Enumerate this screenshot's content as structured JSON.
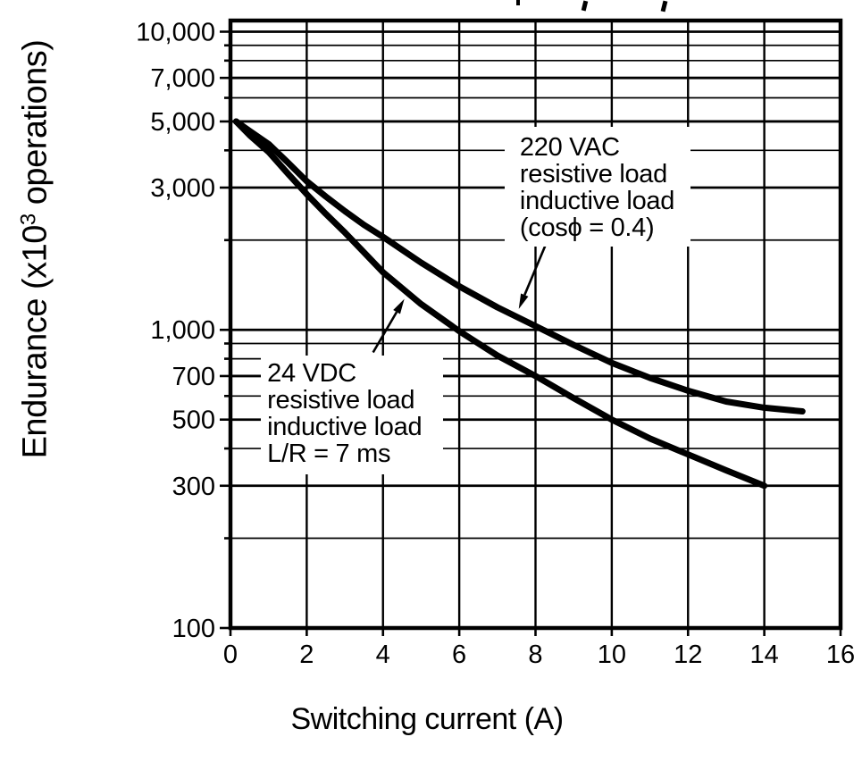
{
  "figure": {
    "y_axis_title": {
      "pre": "Endurance (x10",
      "sup": "3",
      "post": " operations)"
    },
    "x_axis_title": "Switching current (A)"
  },
  "chart_data": {
    "type": "line",
    "title": "",
    "xlabel": "Switching current (A)",
    "ylabel": "Endurance (x10^3 operations)",
    "grid": "on",
    "legend": "inline annotations with leader arrows",
    "x_axis": {
      "min": 0,
      "max": 16,
      "scale": "linear",
      "ticks": [
        0,
        2,
        4,
        6,
        8,
        10,
        12,
        14,
        16
      ],
      "tick_labels": [
        "0",
        "2",
        "4",
        "6",
        "8",
        "10",
        "12",
        "14",
        "16"
      ]
    },
    "y_axis": {
      "min": 100,
      "max": 10900,
      "scale": "log",
      "unit": "x10^3 operations",
      "gridline_values": [
        100,
        200,
        300,
        400,
        500,
        600,
        700,
        800,
        900,
        1000,
        2000,
        3000,
        4000,
        5000,
        6000,
        7000,
        8000,
        9000,
        10000
      ],
      "labeled_ticks": [
        10000,
        7000,
        5000,
        3000,
        1000,
        700,
        500,
        300,
        100
      ],
      "tick_labels": [
        "10,000",
        "7,000",
        "5,000",
        "3,000",
        "1,000",
        "700",
        "500",
        "300",
        "100"
      ]
    },
    "series": [
      {
        "id": "vac220",
        "name": "220 VAC resistive load / inductive load (cosϕ = 0.4)",
        "points": [
          [
            0.15,
            5000
          ],
          [
            0.5,
            4650
          ],
          [
            1,
            4200
          ],
          [
            1.5,
            3650
          ],
          [
            2,
            3150
          ],
          [
            2.5,
            2800
          ],
          [
            3,
            2500
          ],
          [
            3.5,
            2250
          ],
          [
            4,
            2050
          ],
          [
            5,
            1680
          ],
          [
            6,
            1400
          ],
          [
            7,
            1190
          ],
          [
            8,
            1030
          ],
          [
            9,
            890
          ],
          [
            10,
            775
          ],
          [
            11,
            690
          ],
          [
            12,
            625
          ],
          [
            13,
            575
          ],
          [
            14,
            548
          ],
          [
            15,
            533
          ]
        ]
      },
      {
        "id": "vdc24",
        "name": "24 VDC resistive load / inductive load L/R = 7 ms",
        "points": [
          [
            0.15,
            5000
          ],
          [
            0.5,
            4500
          ],
          [
            1,
            3950
          ],
          [
            1.5,
            3350
          ],
          [
            2,
            2850
          ],
          [
            2.5,
            2450
          ],
          [
            3,
            2120
          ],
          [
            3.5,
            1820
          ],
          [
            4,
            1560
          ],
          [
            5,
            1220
          ],
          [
            6,
            990
          ],
          [
            7,
            820
          ],
          [
            8,
            700
          ],
          [
            9,
            590
          ],
          [
            10,
            500
          ],
          [
            11,
            432
          ],
          [
            12,
            382
          ],
          [
            13,
            338
          ],
          [
            14,
            300
          ]
        ]
      }
    ],
    "annotations": [
      {
        "id": "ann-220vac",
        "lines": [
          "220 VAC",
          "resistive load",
          "inductive load",
          "(cosϕ = 0.4)"
        ],
        "box_anchor": [
          7.19,
          4800
        ],
        "arrow_from": [
          8.28,
          1950
        ],
        "arrow_to": [
          7.56,
          1175
        ]
      },
      {
        "id": "ann-24vdc",
        "lines": [
          "24 VDC",
          "resistive load",
          "inductive load",
          "L/R = 7 ms"
        ],
        "box_anchor": [
          0.8,
          820
        ],
        "arrow_from": [
          3.74,
          840
        ],
        "arrow_to": [
          4.56,
          1270
        ]
      }
    ]
  }
}
